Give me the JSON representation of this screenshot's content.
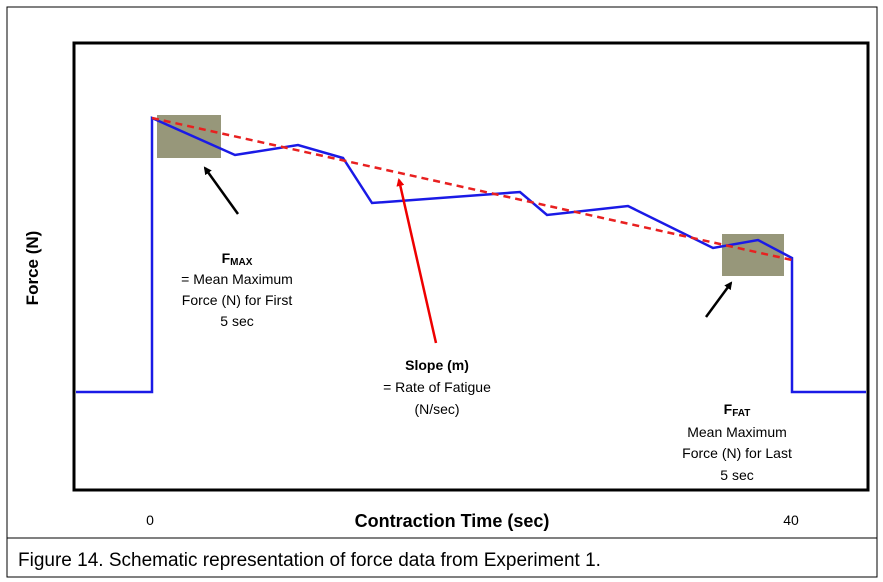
{
  "axes": {
    "y_label": "Force (N)",
    "x_label": "Contraction Time (sec)",
    "x_start": "0",
    "x_end": "40"
  },
  "annotations": {
    "fmax": {
      "symbol": "F",
      "subscript": "MAX",
      "lines": [
        "= Mean Maximum",
        "Force (N) for First",
        "5 sec"
      ]
    },
    "slope": {
      "title": "Slope (m)",
      "lines": [
        "= Rate of Fatigue",
        "(N/sec)"
      ]
    },
    "ffat": {
      "symbol": "F",
      "subscript": "FAT",
      "lines": [
        "Mean Maximum",
        "Force (N) for Last",
        "5 sec"
      ]
    }
  },
  "caption": "Figure 14. Schematic representation of force data from Experiment 1."
}
